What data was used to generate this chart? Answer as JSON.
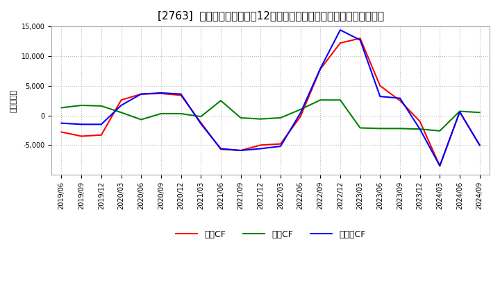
{
  "title": "[2763]  キャッシュフローの12か月移動合計の対前年同期増減額の推移",
  "ylabel": "（百万円）",
  "ylim": [
    -10000,
    15000
  ],
  "yticks": [
    -5000,
    0,
    5000,
    10000,
    15000
  ],
  "series": {
    "営業CF": {
      "color": "#ff0000",
      "data": {
        "2019/06": -2800,
        "2019/09": -3500,
        "2019/12": -3300,
        "2020/03": 2600,
        "2020/06": 3600,
        "2020/09": 3700,
        "2020/12": 3400,
        "2021/03": -1200,
        "2021/06": -5700,
        "2021/09": -5900,
        "2021/12": -5000,
        "2022/03": -4800,
        "2022/06": -200,
        "2022/09": 7800,
        "2022/12": 12200,
        "2023/03": 13000,
        "2023/06": 5000,
        "2023/09": 2500,
        "2023/12": -1000,
        "2024/03": -8500,
        "2024/06": 600,
        "2024/09": -5000
      }
    },
    "投資CF": {
      "color": "#008000",
      "data": {
        "2019/06": 1300,
        "2019/09": 1700,
        "2019/12": 1600,
        "2020/03": 500,
        "2020/06": -700,
        "2020/09": 300,
        "2020/12": 300,
        "2021/03": -200,
        "2021/06": 2500,
        "2021/09": -400,
        "2021/12": -600,
        "2022/03": -400,
        "2022/06": 1000,
        "2022/09": 2600,
        "2022/12": 2600,
        "2023/03": -2100,
        "2023/06": -2200,
        "2023/09": -2200,
        "2023/12": -2300,
        "2024/03": -2600,
        "2024/06": 700,
        "2024/09": 500
      }
    },
    "フリーCF": {
      "color": "#0000ff",
      "data": {
        "2019/06": -1300,
        "2019/09": -1500,
        "2019/12": -1500,
        "2020/03": 1700,
        "2020/06": 3600,
        "2020/09": 3800,
        "2020/12": 3600,
        "2021/03": -1400,
        "2021/06": -5600,
        "2021/09": -5900,
        "2021/12": -5600,
        "2022/03": -5200,
        "2022/06": 400,
        "2022/09": 7900,
        "2022/12": 14400,
        "2023/03": 12700,
        "2023/06": 3200,
        "2023/09": 2900,
        "2023/12": -2300,
        "2024/03": -8500,
        "2024/06": 600,
        "2024/09": -5000
      }
    }
  },
  "xtick_labels": [
    "2019/06",
    "2019/09",
    "2019/12",
    "2020/03",
    "2020/06",
    "2020/09",
    "2020/12",
    "2021/03",
    "2021/06",
    "2021/09",
    "2021/12",
    "2022/03",
    "2022/06",
    "2022/09",
    "2022/12",
    "2023/03",
    "2023/06",
    "2023/09",
    "2023/12",
    "2024/03",
    "2024/06",
    "2024/09"
  ],
  "background_color": "#ffffff",
  "plot_background_color": "#ffffff",
  "grid_color": "#bbbbbb",
  "title_fontsize": 11,
  "label_fontsize": 8,
  "tick_fontsize": 7,
  "legend_fontsize": 9,
  "line_width": 1.5
}
